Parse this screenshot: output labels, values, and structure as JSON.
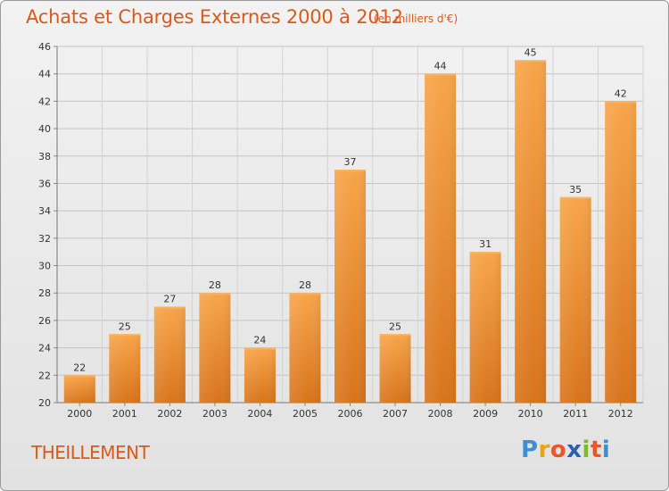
{
  "header": {
    "title": "Achats et Charges Externes 2000 à 2012",
    "subtitle": "(en milliers d'€)"
  },
  "footer": {
    "town": "THEILLEMENT",
    "logo_letters": [
      "P",
      "r",
      "o",
      "x",
      "i",
      "t",
      "i"
    ],
    "logo_colors": [
      "#3d8fd1",
      "#e8a21b",
      "#e8562a",
      "#2a5fb0",
      "#7dbb2e",
      "#e8562a",
      "#3d8fd1"
    ]
  },
  "colors": {
    "bar": "#f09a3e",
    "bar_dark": "#d9761f",
    "title": "#d95a1a"
  },
  "chart_data": {
    "type": "bar",
    "title": "Achats et Charges Externes 2000 à 2012",
    "subtitle": "(en milliers d'€)",
    "categories": [
      "2000",
      "2001",
      "2002",
      "2003",
      "2004",
      "2005",
      "2006",
      "2007",
      "2008",
      "2009",
      "2010",
      "2011",
      "2012"
    ],
    "values": [
      22,
      25,
      27,
      28,
      24,
      28,
      37,
      25,
      44,
      31,
      45,
      35,
      42
    ],
    "ylim": [
      20,
      46
    ],
    "yticks": [
      20,
      22,
      24,
      26,
      28,
      30,
      32,
      34,
      36,
      38,
      40,
      42,
      44,
      46
    ],
    "grid": true,
    "legend": "none"
  }
}
